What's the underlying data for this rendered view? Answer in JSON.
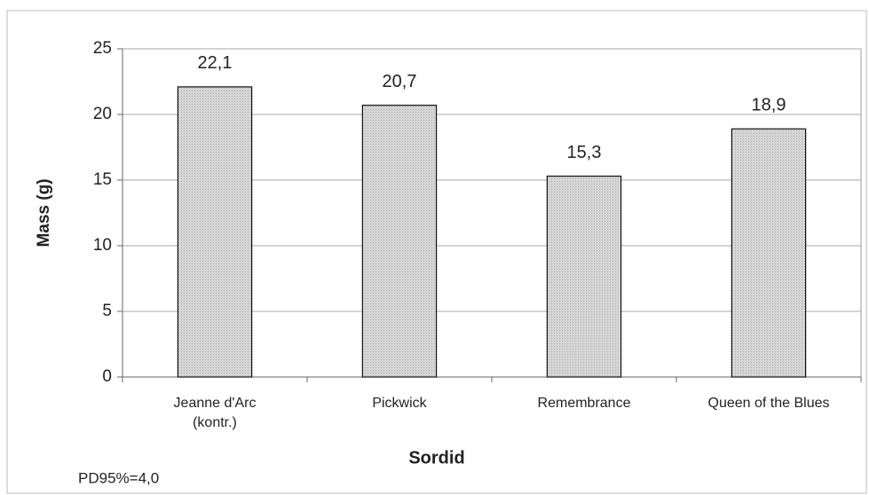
{
  "chart_data": {
    "type": "bar",
    "categories": [
      "Jeanne d'Arc\n(kontr.)",
      "Pickwick",
      "Remembrance",
      "Queen of the Blues"
    ],
    "values": [
      22.1,
      20.7,
      15.3,
      18.9
    ],
    "value_labels": [
      "22,1",
      "20,7",
      "15,3",
      "18,9"
    ],
    "color": "#cfcfcf",
    "ylim": [
      0,
      25
    ],
    "yticks": [
      0,
      5,
      10,
      15,
      20,
      25
    ],
    "grid": true,
    "y_label": "Mass (g)",
    "x_label": "Sordid",
    "annotation": "PD95%=4,0"
  }
}
